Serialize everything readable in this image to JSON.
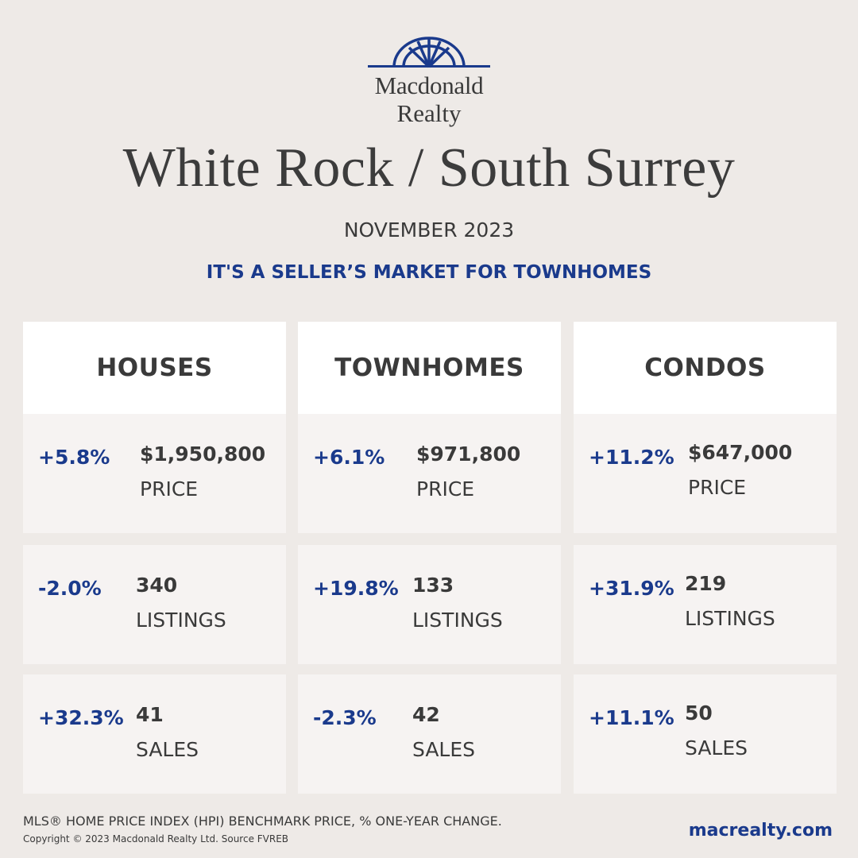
{
  "brand": {
    "line1": "Macdonald",
    "line2": "Realty",
    "logo_icon": "macdonald-realty-fan-logo",
    "color": "#1a3a8c"
  },
  "title": "White Rock / South Surrey",
  "date": "NOVEMBER 2023",
  "tagline": "IT'S A SELLER’S MARKET FOR TOWNHOMES",
  "columns": [
    {
      "header": "HOUSES",
      "rows": [
        {
          "pct": "+5.8%",
          "value": "$1,950,800",
          "label": "PRICE"
        },
        {
          "pct": "-2.0%",
          "value": "340",
          "label": "LISTINGS"
        },
        {
          "pct": "+32.3%",
          "value": "41",
          "label": "SALES"
        }
      ]
    },
    {
      "header": "TOWNHOMES",
      "rows": [
        {
          "pct": "+6.1%",
          "value": "$971,800",
          "label": "PRICE"
        },
        {
          "pct": "+19.8%",
          "value": "133",
          "label": "LISTINGS"
        },
        {
          "pct": "-2.3%",
          "value": "42",
          "label": "SALES"
        }
      ]
    },
    {
      "header": "CONDOS",
      "rows": [
        {
          "pct": "+11.2%",
          "value": "$647,000",
          "label": "PRICE"
        },
        {
          "pct": "+31.9%",
          "value": "219",
          "label": "LISTINGS"
        },
        {
          "pct": "+11.1%",
          "value": "50",
          "label": "SALES"
        }
      ]
    }
  ],
  "footer": {
    "note": "MLS® HOME PRICE INDEX (HPI) BENCHMARK PRICE, % ONE-YEAR CHANGE.",
    "copyright": "Copyright © 2023 Macdonald Realty Ltd. Source FVREB",
    "website": "macrealty.com"
  },
  "colors": {
    "accent": "#1a3a8c",
    "background": "#eeeae7",
    "card": "#f6f3f2",
    "header_card": "#ffffff"
  }
}
